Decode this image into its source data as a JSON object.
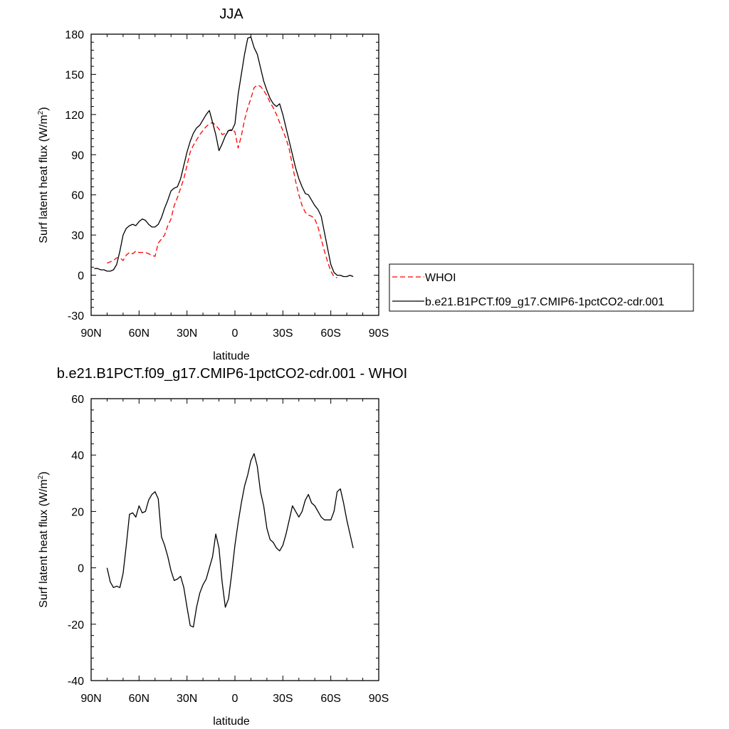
{
  "chart_data": [
    {
      "type": "line",
      "title": "JJA",
      "xlabel": "latitude",
      "ylabel": "Surf latent heat flux (W/m",
      "ylabel_sup": "2",
      "ylabel_close": ")",
      "xlim": [
        90,
        -90
      ],
      "ylim": [
        -30,
        180
      ],
      "yticks": [
        -30,
        0,
        30,
        60,
        90,
        120,
        150,
        180
      ],
      "xticks": [
        {
          "value": 90,
          "label": "90N"
        },
        {
          "value": 60,
          "label": "60N"
        },
        {
          "value": 30,
          "label": "30N"
        },
        {
          "value": 0,
          "label": "0"
        },
        {
          "value": -30,
          "label": "30S"
        },
        {
          "value": -60,
          "label": "60S"
        },
        {
          "value": -90,
          "label": "90S"
        }
      ],
      "legend_position": "right",
      "series": [
        {
          "name": "WHOI",
          "color": "#ff0000",
          "dash": true,
          "points": [
            [
              80,
              9
            ],
            [
              78,
              10
            ],
            [
              76,
              11
            ],
            [
              74,
              13
            ],
            [
              72,
              13
            ],
            [
              70,
              11
            ],
            [
              68,
              15
            ],
            [
              66,
              17
            ],
            [
              64,
              16
            ],
            [
              62,
              18
            ],
            [
              60,
              17
            ],
            [
              56,
              17
            ],
            [
              52,
              15
            ],
            [
              50,
              14
            ],
            [
              48,
              24
            ],
            [
              46,
              27
            ],
            [
              44,
              30
            ],
            [
              42,
              37
            ],
            [
              40,
              42
            ],
            [
              38,
              52
            ],
            [
              36,
              58
            ],
            [
              34,
              65
            ],
            [
              32,
              72
            ],
            [
              30,
              82
            ],
            [
              28,
              92
            ],
            [
              26,
              97
            ],
            [
              24,
              101
            ],
            [
              22,
              105
            ],
            [
              20,
              108
            ],
            [
              18,
              111
            ],
            [
              16,
              113
            ],
            [
              14,
              114
            ],
            [
              12,
              112
            ],
            [
              10,
              109
            ],
            [
              8,
              105
            ],
            [
              6,
              106
            ],
            [
              4,
              108
            ],
            [
              2,
              109
            ],
            [
              0,
              107
            ],
            [
              -2,
              95
            ],
            [
              -4,
              104
            ],
            [
              -6,
              116
            ],
            [
              -8,
              125
            ],
            [
              -10,
              132
            ],
            [
              -12,
              140
            ],
            [
              -14,
              142
            ],
            [
              -16,
              141
            ],
            [
              -18,
              138
            ],
            [
              -20,
              134
            ],
            [
              -22,
              129
            ],
            [
              -24,
              125
            ],
            [
              -26,
              120
            ],
            [
              -28,
              114
            ],
            [
              -30,
              108
            ],
            [
              -32,
              102
            ],
            [
              -34,
              94
            ],
            [
              -36,
              82
            ],
            [
              -38,
              70
            ],
            [
              -40,
              60
            ],
            [
              -42,
              52
            ],
            [
              -44,
              47
            ],
            [
              -46,
              45
            ],
            [
              -48,
              44
            ],
            [
              -50,
              42
            ],
            [
              -52,
              36
            ],
            [
              -54,
              27
            ],
            [
              -56,
              18
            ],
            [
              -58,
              10
            ],
            [
              -60,
              3
            ],
            [
              -62,
              -1
            ],
            [
              -64,
              -2
            ]
          ]
        },
        {
          "name": "b.e21.B1PCT.f09_g17.CMIP6-1pctCO2-cdr.001",
          "color": "#000000",
          "dash": false,
          "points": [
            [
              88,
              5
            ],
            [
              86,
              5
            ],
            [
              84,
              4
            ],
            [
              82,
              4
            ],
            [
              80,
              3
            ],
            [
              78,
              3
            ],
            [
              76,
              4
            ],
            [
              74,
              8
            ],
            [
              72,
              18
            ],
            [
              70,
              30
            ],
            [
              68,
              35
            ],
            [
              66,
              37
            ],
            [
              64,
              38
            ],
            [
              62,
              37
            ],
            [
              60,
              40
            ],
            [
              58,
              42
            ],
            [
              56,
              41
            ],
            [
              54,
              38
            ],
            [
              52,
              36
            ],
            [
              50,
              36
            ],
            [
              48,
              38
            ],
            [
              46,
              43
            ],
            [
              44,
              50
            ],
            [
              42,
              56
            ],
            [
              40,
              63
            ],
            [
              38,
              65
            ],
            [
              36,
              66
            ],
            [
              34,
              72
            ],
            [
              32,
              82
            ],
            [
              30,
              92
            ],
            [
              28,
              100
            ],
            [
              26,
              106
            ],
            [
              24,
              110
            ],
            [
              22,
              112
            ],
            [
              20,
              116
            ],
            [
              18,
              120
            ],
            [
              16,
              123
            ],
            [
              14,
              114
            ],
            [
              12,
              105
            ],
            [
              10,
              93
            ],
            [
              8,
              98
            ],
            [
              6,
              104
            ],
            [
              4,
              108
            ],
            [
              2,
              108
            ],
            [
              0,
              113
            ],
            [
              -2,
              135
            ],
            [
              -4,
              150
            ],
            [
              -6,
              165
            ],
            [
              -8,
              177
            ],
            [
              -10,
              178
            ],
            [
              -12,
              170
            ],
            [
              -14,
              165
            ],
            [
              -16,
              155
            ],
            [
              -18,
              145
            ],
            [
              -20,
              138
            ],
            [
              -22,
              132
            ],
            [
              -24,
              128
            ],
            [
              -26,
              126
            ],
            [
              -28,
              128
            ],
            [
              -30,
              120
            ],
            [
              -32,
              110
            ],
            [
              -34,
              100
            ],
            [
              -36,
              90
            ],
            [
              -38,
              80
            ],
            [
              -40,
              72
            ],
            [
              -42,
              66
            ],
            [
              -44,
              61
            ],
            [
              -46,
              60
            ],
            [
              -48,
              56
            ],
            [
              -50,
              52
            ],
            [
              -52,
              49
            ],
            [
              -54,
              44
            ],
            [
              -56,
              32
            ],
            [
              -58,
              20
            ],
            [
              -60,
              8
            ],
            [
              -62,
              2
            ],
            [
              -64,
              0
            ],
            [
              -66,
              0
            ],
            [
              -68,
              -1
            ],
            [
              -70,
              -1
            ],
            [
              -72,
              0
            ],
            [
              -74,
              -1
            ]
          ]
        }
      ]
    },
    {
      "type": "line",
      "title": "b.e21.B1PCT.f09_g17.CMIP6-1pctCO2-cdr.001 - WHOI",
      "xlabel": "latitude",
      "ylabel": "Surf latent heat flux (W/m",
      "ylabel_sup": "2",
      "ylabel_close": ")",
      "xlim": [
        90,
        -90
      ],
      "ylim": [
        -40,
        60
      ],
      "yticks": [
        -40,
        -20,
        0,
        20,
        40,
        60
      ],
      "xticks": [
        {
          "value": 90,
          "label": "90N"
        },
        {
          "value": 60,
          "label": "60N"
        },
        {
          "value": 30,
          "label": "30N"
        },
        {
          "value": 0,
          "label": "0"
        },
        {
          "value": -30,
          "label": "30S"
        },
        {
          "value": -60,
          "label": "60S"
        },
        {
          "value": -90,
          "label": "90S"
        }
      ],
      "series": [
        {
          "color": "#000000",
          "dash": false,
          "points": [
            [
              80,
              0
            ],
            [
              78,
              -5
            ],
            [
              76,
              -7
            ],
            [
              74,
              -6.5
            ],
            [
              72,
              -7
            ],
            [
              70,
              -2
            ],
            [
              68,
              8
            ],
            [
              66,
              19
            ],
            [
              64,
              19.5
            ],
            [
              62,
              18
            ],
            [
              60,
              22
            ],
            [
              58,
              19.5
            ],
            [
              56,
              20
            ],
            [
              54,
              24
            ],
            [
              52,
              26
            ],
            [
              50,
              27
            ],
            [
              48,
              24.5
            ],
            [
              46,
              11
            ],
            [
              44,
              8
            ],
            [
              42,
              4
            ],
            [
              40,
              -1
            ],
            [
              38,
              -4.5
            ],
            [
              36,
              -4
            ],
            [
              34,
              -3
            ],
            [
              32,
              -7
            ],
            [
              30,
              -14
            ],
            [
              28,
              -20.5
            ],
            [
              26,
              -21
            ],
            [
              24,
              -14
            ],
            [
              22,
              -9
            ],
            [
              20,
              -6
            ],
            [
              18,
              -4
            ],
            [
              16,
              0
            ],
            [
              14,
              4
            ],
            [
              12,
              12
            ],
            [
              10,
              7
            ],
            [
              8,
              -5
            ],
            [
              6,
              -14
            ],
            [
              4,
              -11
            ],
            [
              2,
              -2
            ],
            [
              0,
              8
            ],
            [
              -2,
              16
            ],
            [
              -4,
              23
            ],
            [
              -6,
              29
            ],
            [
              -8,
              33
            ],
            [
              -10,
              38
            ],
            [
              -12,
              40.5
            ],
            [
              -14,
              36
            ],
            [
              -16,
              27
            ],
            [
              -18,
              22
            ],
            [
              -20,
              14
            ],
            [
              -22,
              10
            ],
            [
              -24,
              9
            ],
            [
              -26,
              7
            ],
            [
              -28,
              6
            ],
            [
              -30,
              8
            ],
            [
              -32,
              12
            ],
            [
              -34,
              17
            ],
            [
              -36,
              22
            ],
            [
              -38,
              20
            ],
            [
              -40,
              18
            ],
            [
              -42,
              20
            ],
            [
              -44,
              24
            ],
            [
              -46,
              26
            ],
            [
              -48,
              23
            ],
            [
              -50,
              22
            ],
            [
              -52,
              20
            ],
            [
              -54,
              18
            ],
            [
              -56,
              17
            ],
            [
              -58,
              17
            ],
            [
              -60,
              17
            ],
            [
              -62,
              20
            ],
            [
              -64,
              27
            ],
            [
              -66,
              28
            ],
            [
              -68,
              23
            ],
            [
              -70,
              17
            ],
            [
              -72,
              12
            ],
            [
              -74,
              7
            ]
          ]
        }
      ]
    }
  ]
}
